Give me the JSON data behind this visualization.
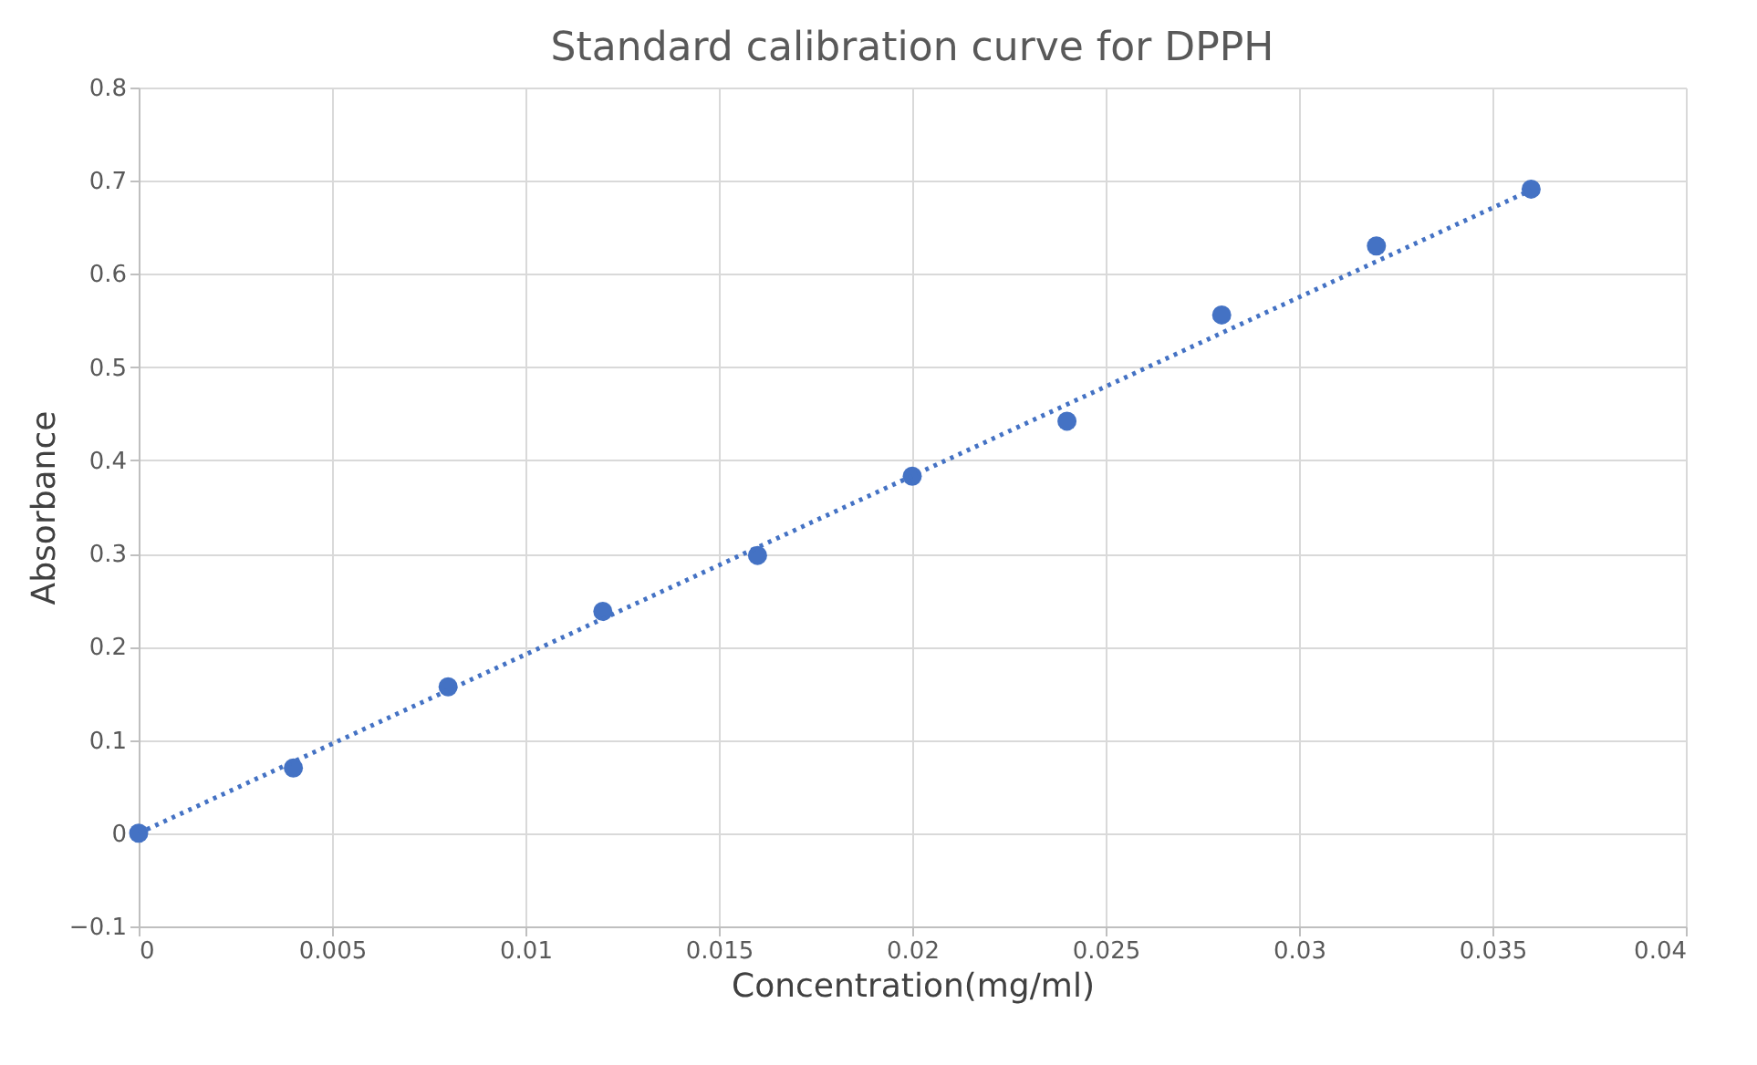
{
  "chart_data": {
    "type": "scatter",
    "title": "Standard calibration curve for DPPH",
    "xlabel": "Concentration(mg/ml)",
    "ylabel": "Absorbance",
    "x": [
      0,
      0.004,
      0.008,
      0.012,
      0.016,
      0.02,
      0.024,
      0.028,
      0.032,
      0.036
    ],
    "series": [
      {
        "color": "#4472c4",
        "values": [
          0,
          0.07,
          0.157,
          0.238,
          0.298,
          0.383,
          0.442,
          0.556,
          0.63,
          0.691
        ]
      },
      {
        "type": "line",
        "color": "#4472c4",
        "line_style": "dotted",
        "x": [
          0,
          0.036
        ],
        "values": [
          0,
          0.69
        ]
      }
    ],
    "xlim": [
      0,
      0.04
    ],
    "xticks": [
      0,
      0.005,
      0.01,
      0.015,
      0.02,
      0.025,
      0.03,
      0.035,
      0.04
    ],
    "ylim": [
      -0.1,
      0.8
    ],
    "yticks": [
      -0.1,
      0,
      0.1,
      0.2,
      0.3,
      0.4,
      0.5,
      0.6,
      0.7,
      0.8
    ],
    "grid": true
  }
}
